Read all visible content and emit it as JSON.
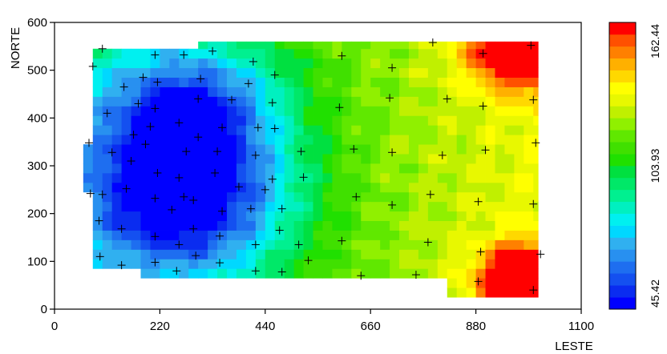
{
  "chart_data": {
    "type": "heatmap",
    "title": "",
    "xlabel": "LESTE",
    "ylabel": "NORTE",
    "xlim": [
      0,
      1100
    ],
    "ylim": [
      0,
      600
    ],
    "x_ticks": [
      0,
      220,
      440,
      660,
      880,
      1100
    ],
    "y_ticks": [
      0,
      100,
      200,
      300,
      400,
      500,
      600
    ],
    "x_tick_labels": [
      "0",
      "220",
      "440",
      "660",
      "880",
      "1100"
    ],
    "y_tick_labels": [
      "0",
      "100",
      "200",
      "300",
      "400",
      "500",
      "600"
    ],
    "colorbar": {
      "min": 45.42,
      "max": 162.44,
      "labels": [
        "162.44",
        "103.93",
        "45.42"
      ],
      "n_classes": 24,
      "colors": [
        "#0000ff",
        "#0a2cf0",
        "#1450f0",
        "#1e6ef0",
        "#2890f0",
        "#30b0f0",
        "#00d8ff",
        "#00f0f0",
        "#00f0c0",
        "#00f090",
        "#00e868",
        "#00e040",
        "#20e000",
        "#40e000",
        "#60e800",
        "#90f000",
        "#c0f000",
        "#e8f800",
        "#ffff00",
        "#ffd800",
        "#ffb000",
        "#ff8000",
        "#ff5000",
        "#ff0000"
      ]
    },
    "surface_extent": {
      "x": [
        60,
        1010
      ],
      "y": [
        30,
        555
      ]
    },
    "regions": [
      {
        "name": "low-center",
        "x": 270,
        "y": 240,
        "value": 46
      },
      {
        "name": "low-north",
        "x": 290,
        "y": 440,
        "value": 55
      },
      {
        "name": "high-northeast",
        "x": 975,
        "y": 545,
        "value": 162
      },
      {
        "name": "high-southeast",
        "x": 975,
        "y": 60,
        "value": 162
      }
    ],
    "sample_points": [
      [
        100,
        545
      ],
      [
        210,
        532
      ],
      [
        270,
        532
      ],
      [
        330,
        540
      ],
      [
        415,
        518
      ],
      [
        600,
        530
      ],
      [
        705,
        505
      ],
      [
        790,
        558
      ],
      [
        895,
        535
      ],
      [
        995,
        552
      ],
      [
        80,
        508
      ],
      [
        185,
        485
      ],
      [
        215,
        475
      ],
      [
        305,
        482
      ],
      [
        405,
        472
      ],
      [
        460,
        490
      ],
      [
        145,
        465
      ],
      [
        110,
        410
      ],
      [
        175,
        430
      ],
      [
        210,
        420
      ],
      [
        300,
        440
      ],
      [
        370,
        438
      ],
      [
        455,
        432
      ],
      [
        595,
        422
      ],
      [
        700,
        442
      ],
      [
        820,
        440
      ],
      [
        895,
        425
      ],
      [
        1000,
        438
      ],
      [
        200,
        382
      ],
      [
        260,
        390
      ],
      [
        350,
        380
      ],
      [
        425,
        380
      ],
      [
        460,
        378
      ],
      [
        165,
        365
      ],
      [
        190,
        345
      ],
      [
        300,
        360
      ],
      [
        72,
        348
      ],
      [
        120,
        328
      ],
      [
        160,
        310
      ],
      [
        275,
        330
      ],
      [
        340,
        330
      ],
      [
        420,
        322
      ],
      [
        515,
        330
      ],
      [
        625,
        335
      ],
      [
        705,
        328
      ],
      [
        810,
        322
      ],
      [
        900,
        333
      ],
      [
        1005,
        348
      ],
      [
        75,
        242
      ],
      [
        100,
        240
      ],
      [
        150,
        252
      ],
      [
        215,
        285
      ],
      [
        260,
        275
      ],
      [
        335,
        285
      ],
      [
        385,
        256
      ],
      [
        440,
        250
      ],
      [
        455,
        272
      ],
      [
        520,
        276
      ],
      [
        210,
        232
      ],
      [
        245,
        208
      ],
      [
        270,
        235
      ],
      [
        290,
        228
      ],
      [
        350,
        205
      ],
      [
        410,
        210
      ],
      [
        475,
        210
      ],
      [
        630,
        235
      ],
      [
        705,
        218
      ],
      [
        785,
        240
      ],
      [
        885,
        225
      ],
      [
        1000,
        220
      ],
      [
        93,
        185
      ],
      [
        140,
        168
      ],
      [
        210,
        152
      ],
      [
        290,
        168
      ],
      [
        345,
        153
      ],
      [
        470,
        165
      ],
      [
        600,
        143
      ],
      [
        780,
        140
      ],
      [
        510,
        135
      ],
      [
        420,
        135
      ],
      [
        95,
        110
      ],
      [
        140,
        92
      ],
      [
        210,
        98
      ],
      [
        260,
        135
      ],
      [
        295,
        112
      ],
      [
        345,
        97
      ],
      [
        420,
        80
      ],
      [
        475,
        78
      ],
      [
        530,
        102
      ],
      [
        640,
        70
      ],
      [
        755,
        72
      ],
      [
        890,
        120
      ],
      [
        1015,
        115
      ],
      [
        255,
        80
      ],
      [
        885,
        58
      ],
      [
        1000,
        40
      ]
    ]
  }
}
